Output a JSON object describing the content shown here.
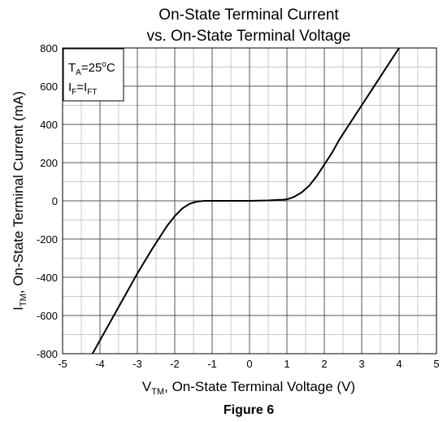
{
  "chart_data": {
    "type": "line",
    "title_line1": "On-State Terminal Current",
    "title_line2": "vs. On-State Terminal Voltage",
    "xlabel": {
      "main": "V",
      "sub": "TM",
      "rest": ", On-State Terminal Voltage (V)"
    },
    "ylabel": {
      "main": "I",
      "sub": "TM",
      "rest": ", On-State Terminal Current (mA)"
    },
    "caption": "Figure 6",
    "xlim": [
      -5,
      5
    ],
    "ylim": [
      -800,
      800
    ],
    "x_ticks": [
      "-5",
      "-4",
      "-3",
      "-2",
      "-1",
      "0",
      "1",
      "2",
      "3",
      "4",
      "5"
    ],
    "y_ticks": [
      "-800",
      "-600",
      "-400",
      "-200",
      "0",
      "200",
      "400",
      "600",
      "800"
    ],
    "x_tick_values": [
      -5,
      -4,
      -3,
      -2,
      -1,
      0,
      1,
      2,
      3,
      4,
      5
    ],
    "y_tick_values": [
      -800,
      -600,
      -400,
      -200,
      0,
      200,
      400,
      600,
      800
    ],
    "grid": true,
    "legend": {
      "placement": "top-left",
      "line1": {
        "main": "T",
        "sub": "A",
        "mid": "=25",
        "sup": "o",
        "end": "C"
      },
      "line2": {
        "main": "I",
        "sub": "F",
        "mid": "=I",
        "sub2": "FT"
      }
    },
    "series": [
      {
        "x": [
          -4.2,
          -3.8,
          -3.4,
          -3.0,
          -2.6,
          -2.2,
          -2.0,
          -1.8,
          -1.6,
          -1.4,
          -1.2,
          -1.05,
          -1.0,
          -0.8,
          -0.5,
          0.0,
          0.5,
          0.8,
          0.9,
          1.0,
          1.1,
          1.2,
          1.4,
          1.6,
          1.8,
          2.0,
          2.2,
          2.4,
          2.6,
          2.8,
          3.0,
          3.2,
          3.4,
          3.6,
          3.8,
          4.0,
          4.2
        ],
        "y": [
          -800,
          -660,
          -520,
          -380,
          -250,
          -130,
          -80,
          -40,
          -15,
          -4,
          0,
          0,
          0,
          0,
          0,
          0,
          2,
          5,
          6,
          8,
          14,
          22,
          45,
          80,
          130,
          190,
          250,
          320,
          380,
          440,
          500,
          560,
          620,
          680,
          740,
          800,
          850
        ]
      }
    ]
  }
}
